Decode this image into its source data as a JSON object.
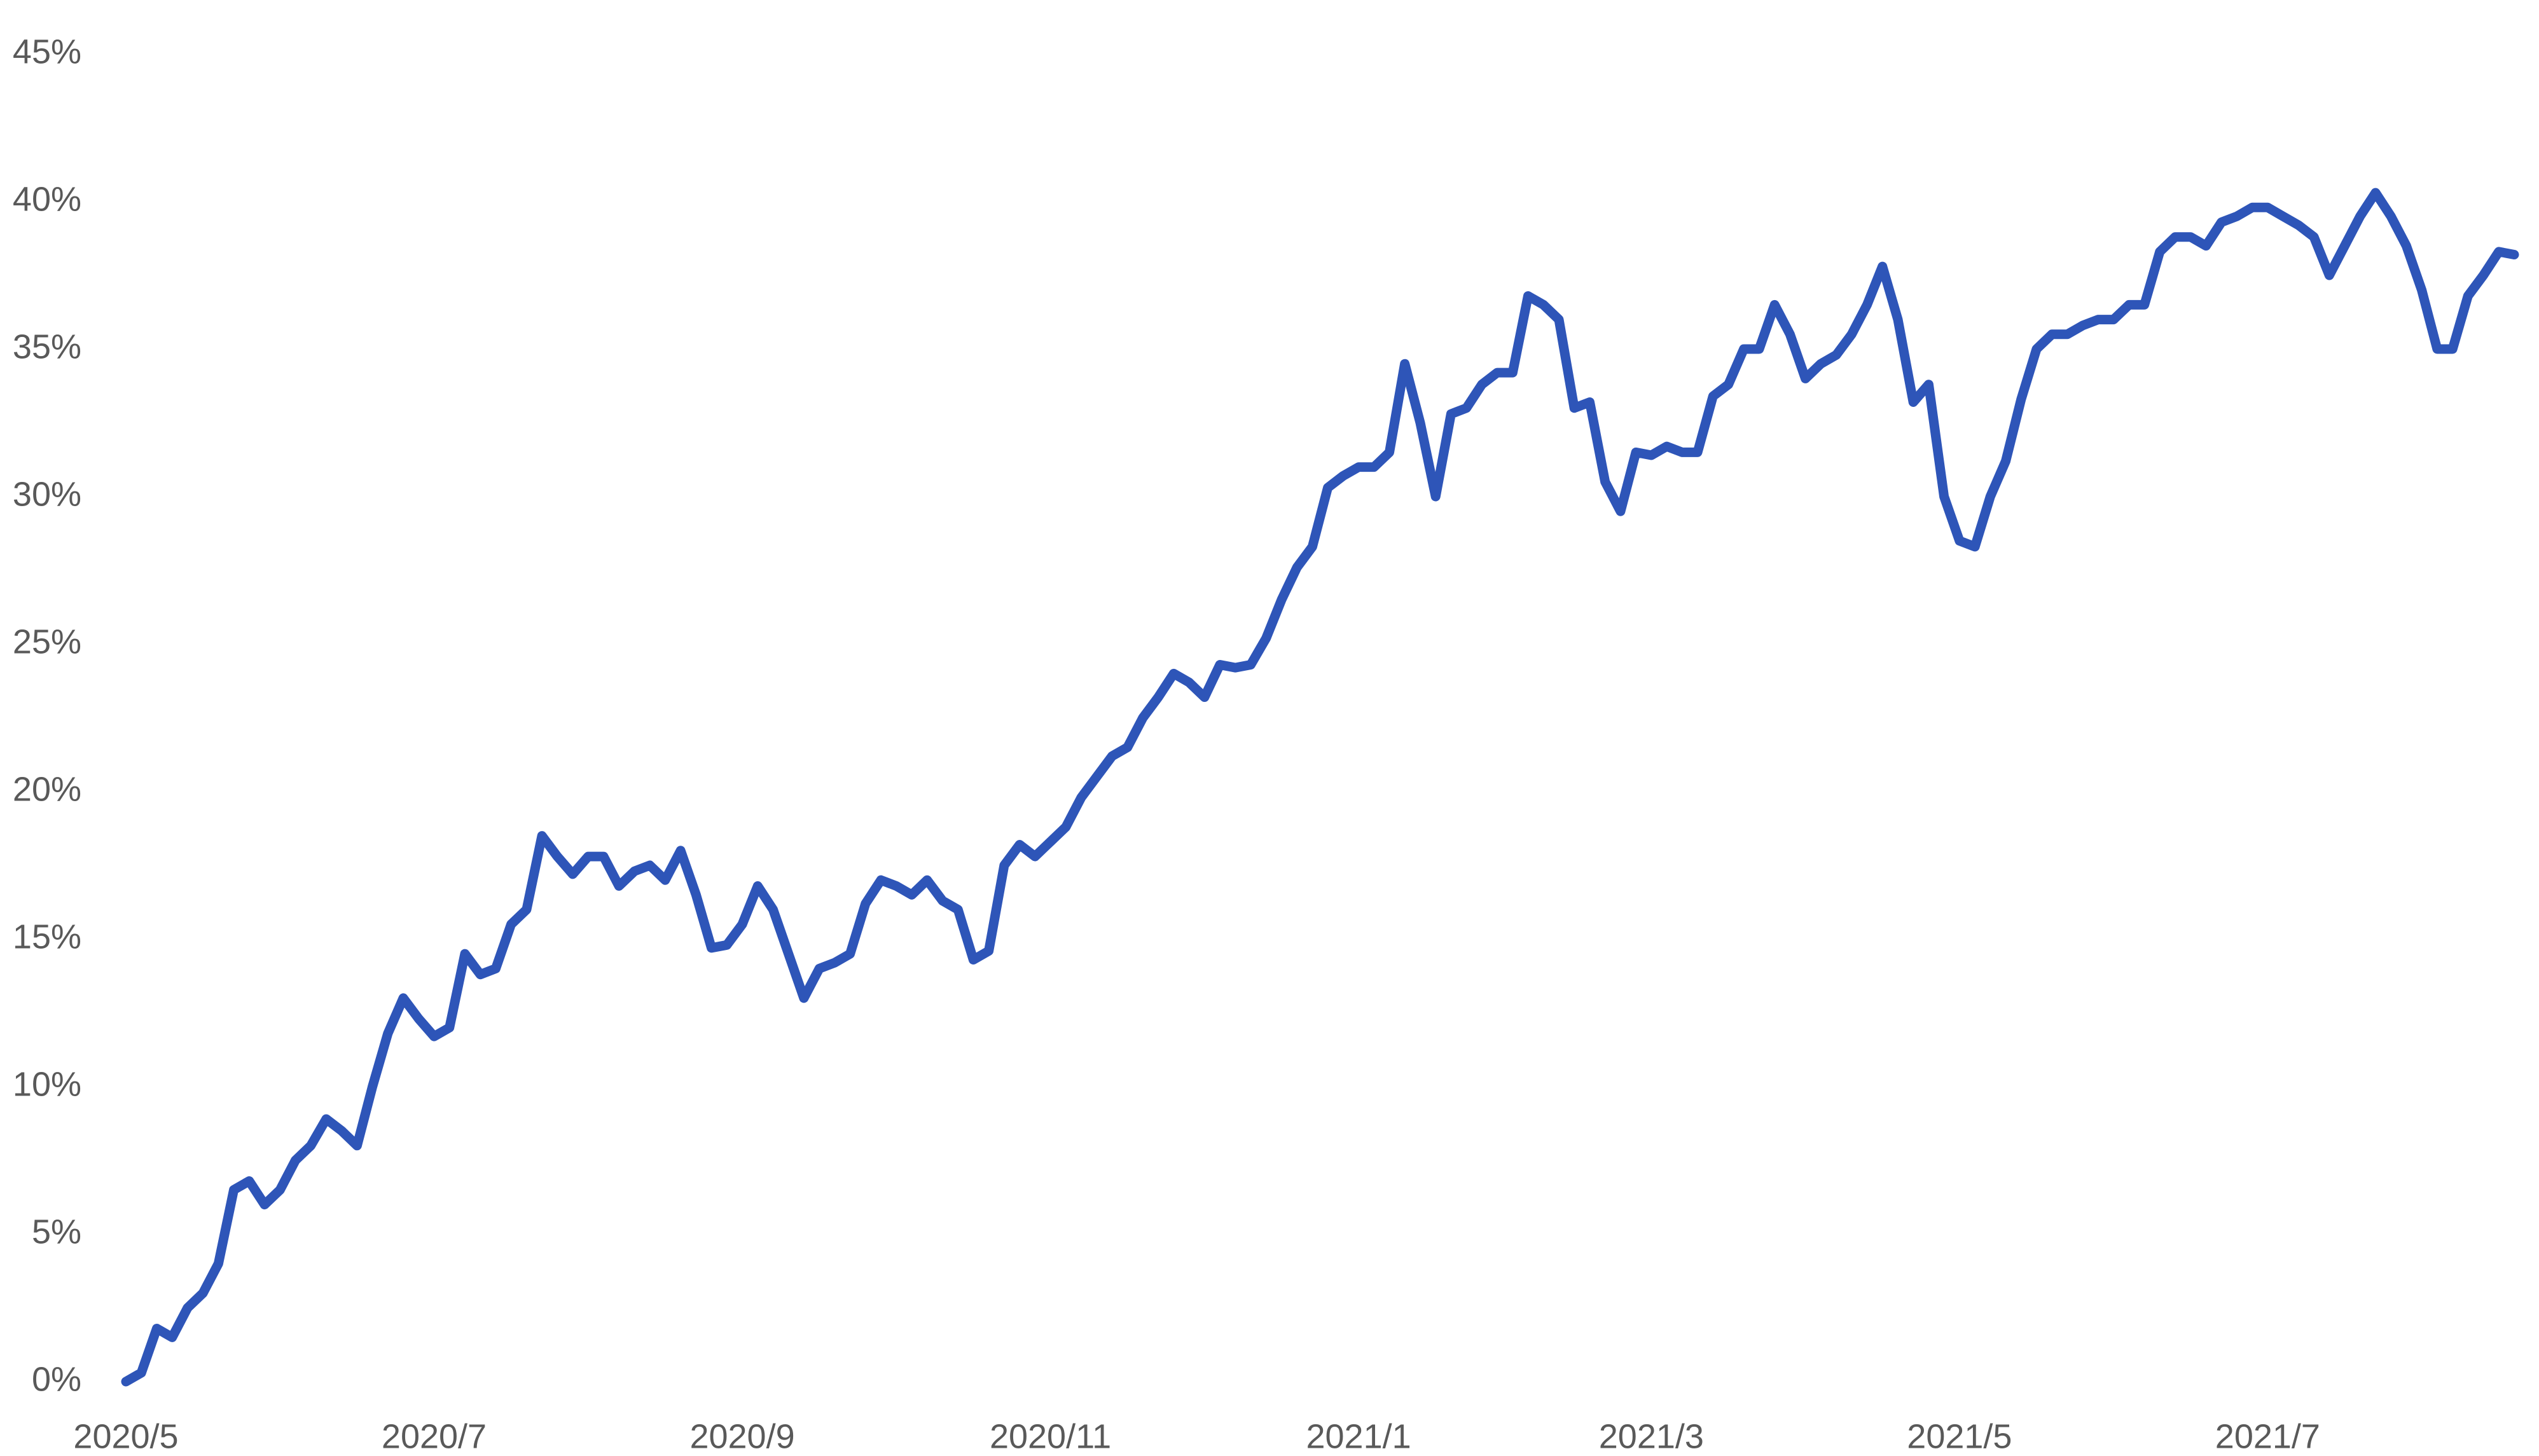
{
  "chart_data": {
    "type": "line",
    "categories": [
      "2020/5",
      null,
      null,
      null,
      null,
      null,
      null,
      null,
      null,
      null,
      null,
      null,
      null,
      null,
      null,
      null,
      null,
      null,
      null,
      null,
      "2020/7",
      null,
      null,
      null,
      null,
      null,
      null,
      null,
      null,
      null,
      null,
      null,
      null,
      null,
      null,
      null,
      null,
      null,
      null,
      null,
      "2020/9",
      null,
      null,
      null,
      null,
      null,
      null,
      null,
      null,
      null,
      null,
      null,
      null,
      null,
      null,
      null,
      null,
      null,
      null,
      null,
      "2020/11",
      null,
      null,
      null,
      null,
      null,
      null,
      null,
      null,
      null,
      null,
      null,
      null,
      null,
      null,
      null,
      null,
      null,
      null,
      null,
      "2021/1",
      null,
      null,
      null,
      null,
      null,
      null,
      null,
      null,
      null,
      null,
      null,
      null,
      null,
      null,
      null,
      null,
      null,
      null,
      "2021/3",
      null,
      null,
      null,
      null,
      null,
      null,
      null,
      null,
      null,
      null,
      null,
      null,
      null,
      null,
      null,
      null,
      null,
      null,
      null,
      "2021/5",
      null,
      null,
      null,
      null,
      null,
      null,
      null,
      null,
      null,
      null,
      null,
      null,
      null,
      null,
      null,
      null,
      null,
      null,
      null,
      "2021/7",
      null,
      null,
      null,
      null,
      null,
      null,
      null,
      null,
      null,
      null,
      null,
      null,
      null,
      null,
      null,
      null
    ],
    "values": [
      0,
      0.3,
      1.8,
      1.5,
      2.5,
      3,
      4,
      6.5,
      6.8,
      6,
      6.5,
      7.5,
      8,
      8.9,
      8.5,
      8,
      10,
      11.8,
      13,
      12.3,
      11.7,
      12,
      14.5,
      13.8,
      14,
      15.5,
      16,
      18.5,
      17.8,
      17.2,
      17.8,
      17.8,
      16.8,
      17.3,
      17.5,
      17,
      18,
      16.5,
      14.7,
      14.8,
      15.5,
      16.8,
      16,
      14.5,
      13,
      14,
      14.2,
      14.5,
      16.2,
      17,
      16.8,
      16.5,
      17,
      16.3,
      16,
      14.3,
      14.6,
      17.5,
      18.2,
      17.8,
      18.3,
      18.8,
      19.8,
      20.5,
      21.2,
      21.5,
      22.5,
      23.2,
      24,
      23.7,
      23.2,
      24.3,
      24.2,
      24.3,
      25.2,
      26.5,
      27.6,
      28.3,
      30.3,
      30.7,
      31,
      31,
      31.5,
      34.5,
      32.5,
      30,
      32.8,
      33,
      33.8,
      34.2,
      34.2,
      36.8,
      36.5,
      36,
      33,
      33.2,
      30.5,
      29.5,
      31.5,
      31.4,
      31.7,
      31.5,
      31.5,
      33.4,
      33.8,
      35,
      35,
      36.5,
      35.5,
      34,
      34.5,
      34.8,
      35.5,
      36.5,
      37.8,
      36,
      33.2,
      33.8,
      30,
      28.5,
      28.3,
      30,
      31.2,
      33.3,
      35,
      35.5,
      35.5,
      35.8,
      36,
      36,
      36.5,
      36.5,
      38.3,
      38.8,
      38.8,
      38.5,
      39.3,
      39.5,
      39.8,
      39.8,
      39.5,
      39.2,
      38.8,
      37.5,
      38.5,
      39.5,
      40.3,
      39.5,
      38.5,
      37,
      35,
      35,
      36.8,
      37.5,
      38.3,
      38.2
    ],
    "color": "#2e55b8",
    "ylim": [
      0,
      45
    ],
    "yticks": [
      {
        "value": 0,
        "label": "0%"
      },
      {
        "value": 5,
        "label": "5%"
      },
      {
        "value": 10,
        "label": "10%"
      },
      {
        "value": 15,
        "label": "15%"
      },
      {
        "value": 20,
        "label": "20%"
      },
      {
        "value": 25,
        "label": "25%"
      },
      {
        "value": 30,
        "label": "30%"
      },
      {
        "value": 35,
        "label": "35%"
      },
      {
        "value": 40,
        "label": "40%"
      },
      {
        "value": 45,
        "label": "45%"
      }
    ],
    "grid": false
  }
}
